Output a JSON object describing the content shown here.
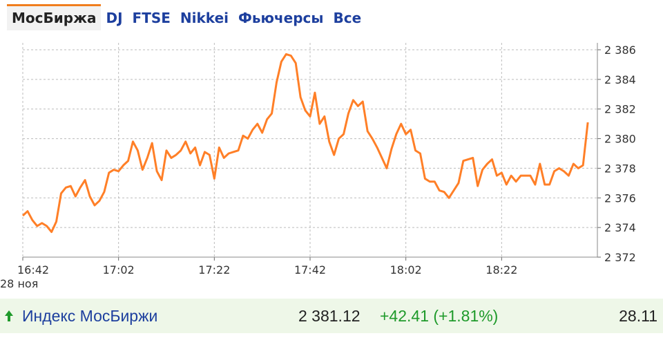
{
  "tabs": [
    "МосБиржа",
    "DJ",
    "FTSE",
    "Nikkei",
    "Фьючерсы",
    "Все"
  ],
  "chart_data": {
    "type": "line",
    "x": [
      "16:42",
      "16:43",
      "16:44",
      "16:45",
      "16:46",
      "16:47",
      "16:48",
      "16:49",
      "16:50",
      "16:51",
      "16:52",
      "16:53",
      "16:54",
      "16:55",
      "16:56",
      "16:57",
      "16:58",
      "16:59",
      "17:00",
      "17:01",
      "17:02",
      "17:03",
      "17:04",
      "17:05",
      "17:06",
      "17:07",
      "17:08",
      "17:09",
      "17:10",
      "17:11",
      "17:12",
      "17:13",
      "17:14",
      "17:15",
      "17:16",
      "17:17",
      "17:18",
      "17:19",
      "17:20",
      "17:21",
      "17:22",
      "17:23",
      "17:24",
      "17:25",
      "17:26",
      "17:27",
      "17:28",
      "17:29",
      "17:30",
      "17:31",
      "17:32",
      "17:33",
      "17:34",
      "17:35",
      "17:36",
      "17:37",
      "17:38",
      "17:39",
      "17:40",
      "17:41",
      "17:42",
      "17:43",
      "17:44",
      "17:45",
      "17:46",
      "17:47",
      "17:48",
      "17:49",
      "17:50",
      "17:51",
      "17:52",
      "17:53",
      "17:54",
      "17:55",
      "17:56",
      "17:57",
      "17:58",
      "17:59",
      "18:00",
      "18:01",
      "18:02",
      "18:03",
      "18:04",
      "18:05",
      "18:06",
      "18:07",
      "18:08",
      "18:09",
      "18:10",
      "18:11",
      "18:12",
      "18:13",
      "18:14",
      "18:15",
      "18:16",
      "18:17",
      "18:18",
      "18:19",
      "18:20",
      "18:21",
      "18:22",
      "18:23",
      "18:24",
      "18:25",
      "18:26",
      "18:27",
      "18:28",
      "18:29",
      "18:30",
      "18:31",
      "18:32",
      "18:33",
      "18:34",
      "18:35",
      "18:36",
      "18:37",
      "18:38",
      "18:39",
      "18:40"
    ],
    "series": [
      {
        "name": "Индекс МосБиржи",
        "color": "#ff7f27",
        "values": [
          2374.8,
          2375.1,
          2374.5,
          2374.1,
          2374.3,
          2374.1,
          2373.7,
          2374.4,
          2376.3,
          2376.7,
          2376.8,
          2376.1,
          2376.7,
          2377.2,
          2376.1,
          2375.5,
          2375.8,
          2376.4,
          2377.7,
          2377.9,
          2377.8,
          2378.2,
          2378.5,
          2379.8,
          2379.2,
          2377.9,
          2378.7,
          2379.7,
          2377.8,
          2377.2,
          2379.2,
          2378.7,
          2378.9,
          2379.2,
          2379.8,
          2379.0,
          2379.4,
          2378.2,
          2379.1,
          2378.9,
          2377.3,
          2379.4,
          2378.7,
          2379.0,
          2379.1,
          2379.2,
          2380.2,
          2380.0,
          2380.6,
          2381.0,
          2380.4,
          2381.3,
          2381.7,
          2383.8,
          2385.2,
          2385.7,
          2385.6,
          2385.1,
          2382.8,
          2381.9,
          2381.5,
          2383.1,
          2381.0,
          2381.5,
          2379.8,
          2378.9,
          2380.0,
          2380.3,
          2381.7,
          2382.6,
          2382.2,
          2382.5,
          2380.5,
          2380.0,
          2379.4,
          2378.7,
          2378.0,
          2379.3,
          2380.3,
          2381.0,
          2380.3,
          2380.6,
          2379.2,
          2379.0,
          2377.3,
          2377.1,
          2377.1,
          2376.5,
          2376.4,
          2376.0,
          2376.5,
          2377.0,
          2378.5,
          2378.6,
          2378.7,
          2376.8,
          2377.9,
          2378.3,
          2378.6,
          2377.5,
          2377.7,
          2376.9,
          2377.5,
          2377.1,
          2377.5,
          2377.5,
          2377.5,
          2376.9,
          2378.3,
          2376.9,
          2376.9,
          2377.8,
          2378.0,
          2377.8,
          2377.5,
          2378.3,
          2378.0,
          2378.2,
          2381.1
        ]
      }
    ],
    "xlim": [
      "16:42",
      "18:42"
    ],
    "xticks": [
      "16:42",
      "17:02",
      "17:22",
      "17:42",
      "18:02",
      "18:22"
    ],
    "date_label": "28 ноя",
    "ylim": [
      2372,
      2386
    ],
    "yticks": [
      {
        "value": 2372,
        "label": "2 372"
      },
      {
        "value": 2374,
        "label": "2 374"
      },
      {
        "value": 2376,
        "label": "2 376"
      },
      {
        "value": 2378,
        "label": "2 378"
      },
      {
        "value": 2380,
        "label": "2 380"
      },
      {
        "value": 2382,
        "label": "2 382"
      },
      {
        "value": 2384,
        "label": "2 384"
      },
      {
        "value": 2386,
        "label": "2 386"
      }
    ],
    "grid": true
  },
  "summary": {
    "name": "Индекс МосБиржи",
    "price": "2 381.12",
    "change": "+42.41 (+1.81%)",
    "date": "28.11"
  }
}
